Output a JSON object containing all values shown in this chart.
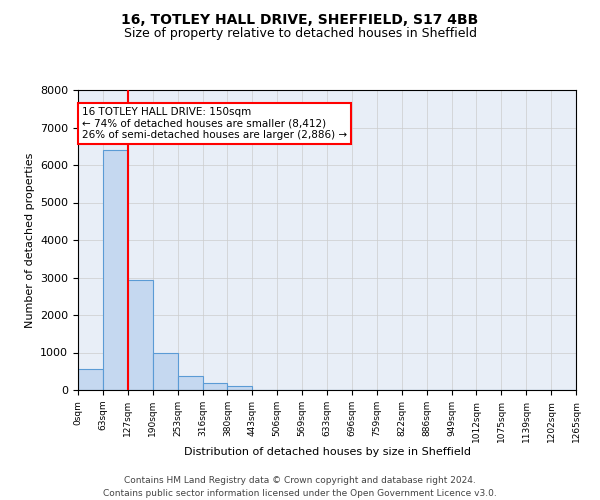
{
  "title": "16, TOTLEY HALL DRIVE, SHEFFIELD, S17 4BB",
  "subtitle": "Size of property relative to detached houses in Sheffield",
  "xlabel": "Distribution of detached houses by size in Sheffield",
  "ylabel": "Number of detached properties",
  "bar_values": [
    560,
    6400,
    2930,
    990,
    380,
    175,
    95,
    0,
    0,
    0,
    0,
    0,
    0,
    0,
    0,
    0,
    0,
    0,
    0,
    0
  ],
  "bin_labels": [
    "0sqm",
    "63sqm",
    "127sqm",
    "190sqm",
    "253sqm",
    "316sqm",
    "380sqm",
    "443sqm",
    "506sqm",
    "569sqm",
    "633sqm",
    "696sqm",
    "759sqm",
    "822sqm",
    "886sqm",
    "949sqm",
    "1012sqm",
    "1075sqm",
    "1139sqm",
    "1202sqm",
    "1265sqm"
  ],
  "bar_color": "#c5d8f0",
  "bar_edge_color": "#5b9bd5",
  "bar_edge_width": 0.8,
  "property_line_x": 2,
  "property_line_color": "red",
  "ylim": [
    0,
    8000
  ],
  "yticks": [
    0,
    1000,
    2000,
    3000,
    4000,
    5000,
    6000,
    7000,
    8000
  ],
  "annotation_box_text": "16 TOTLEY HALL DRIVE: 150sqm\n← 74% of detached houses are smaller (8,412)\n26% of semi-detached houses are larger (2,886) →",
  "annotation_box_color": "red",
  "annotation_box_facecolor": "white",
  "grid_color": "#cccccc",
  "background_color": "#e8eef7",
  "footer_line1": "Contains HM Land Registry data © Crown copyright and database right 2024.",
  "footer_line2": "Contains public sector information licensed under the Open Government Licence v3.0.",
  "title_fontsize": 10,
  "subtitle_fontsize": 9,
  "annotation_fontsize": 7.5,
  "footer_fontsize": 6.5,
  "ylabel_fontsize": 8,
  "xlabel_fontsize": 8
}
